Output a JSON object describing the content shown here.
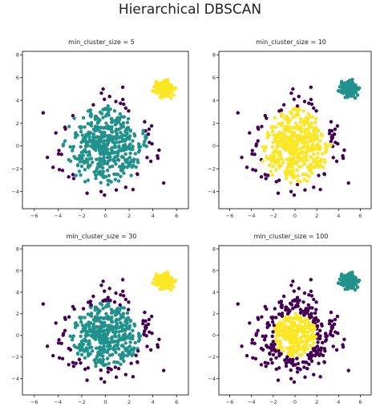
{
  "figure": {
    "title": "Hierarchical DBSCAN"
  },
  "colors": {
    "noise": "#440154",
    "teal": "#21918c",
    "yellow": "#fde725"
  },
  "chart_data": [
    {
      "type": "scatter",
      "title": "min_cluster_size = 5",
      "xlim": [
        -7,
        7
      ],
      "ylim": [
        -5.5,
        8.3
      ],
      "xticks": [
        -6,
        -4,
        -2,
        0,
        2,
        4,
        6
      ],
      "yticks": [
        -4,
        -2,
        0,
        2,
        4,
        6,
        8
      ],
      "labeling": {
        "big": "teal",
        "small": "yellow",
        "noise_radius": 3.6,
        "noise_color": "noise"
      },
      "clusters": [
        {
          "name": "",
          "center": [
            0,
            0
          ],
          "std": 1.7,
          "n": 520
        },
        {
          "name": "",
          "center": [
            5,
            5
          ],
          "std": 0.32,
          "n": 260
        }
      ]
    },
    {
      "type": "scatter",
      "title": "min_cluster_size = 10",
      "xlim": [
        -7,
        7
      ],
      "ylim": [
        -5.5,
        8.3
      ],
      "xticks": [
        -6,
        -4,
        -2,
        0,
        2,
        4,
        6
      ],
      "yticks": [
        -4,
        -2,
        0,
        2,
        4,
        6,
        8
      ],
      "labeling": {
        "big": "yellow",
        "small": "teal",
        "noise_radius": 3.3,
        "noise_color": "noise"
      },
      "clusters": [
        {
          "name": "",
          "center": [
            0,
            0
          ],
          "std": 1.7,
          "n": 520
        },
        {
          "name": "",
          "center": [
            5,
            5
          ],
          "std": 0.32,
          "n": 260
        }
      ]
    },
    {
      "type": "scatter",
      "title": "min_cluster_size = 30",
      "xlim": [
        -7,
        7
      ],
      "ylim": [
        -5.5,
        8.3
      ],
      "xticks": [
        -6,
        -4,
        -2,
        0,
        2,
        4,
        6
      ],
      "yticks": [
        -4,
        -2,
        0,
        2,
        4,
        6,
        8
      ],
      "labeling": {
        "big": "teal",
        "small": "yellow",
        "noise_radius": 3.0,
        "noise_color": "noise"
      },
      "clusters": [
        {
          "name": "",
          "center": [
            0,
            0
          ],
          "std": 1.7,
          "n": 520
        },
        {
          "name": "",
          "center": [
            5,
            5
          ],
          "std": 0.32,
          "n": 260
        }
      ]
    },
    {
      "type": "scatter",
      "title": "min_cluster_size = 100",
      "xlim": [
        -7,
        7
      ],
      "ylim": [
        -5.5,
        8.3
      ],
      "xticks": [
        -6,
        -4,
        -2,
        0,
        2,
        4,
        6
      ],
      "yticks": [
        -4,
        -2,
        0,
        2,
        4,
        6,
        8
      ],
      "labeling": {
        "big": "yellow",
        "small": "teal",
        "noise_radius": 2.0,
        "noise_color": "noise"
      },
      "clusters": [
        {
          "name": "",
          "center": [
            0,
            0
          ],
          "std": 1.7,
          "n": 520
        },
        {
          "name": "",
          "center": [
            5,
            5
          ],
          "std": 0.32,
          "n": 260
        }
      ]
    }
  ]
}
